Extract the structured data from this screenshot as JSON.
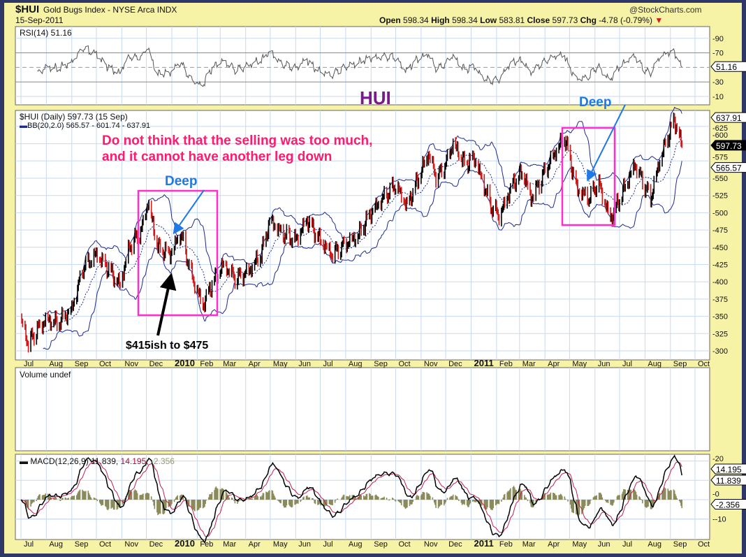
{
  "header": {
    "symbol": "$HUI",
    "name": "Gold Bugs Index - NYSE Arca INDX",
    "source": "@StockCharts.com",
    "date": "15-Sep-2011",
    "open_label": "Open",
    "open": "598.34",
    "high_label": "High",
    "high": "598.34",
    "low_label": "Low",
    "low": "583.81",
    "close_label": "Close",
    "close": "597.73",
    "chg_label": "Chg",
    "chg": "-4.78 (-0.79%)",
    "chg_direction": "down"
  },
  "colors": {
    "up": "#000000",
    "down": "#d11a1a",
    "bands": "#1d2a8a",
    "rsi": "#555555",
    "macd": "#000000",
    "signal": "#c02050",
    "histogram": "#8a8a5a",
    "annotation_text": "#ff1a6e",
    "deep_label": "#1e78e6",
    "title": "#7a1a8a",
    "box": "#ff2fc8",
    "grid": "#c8daf0",
    "panel": "#f6f2a6"
  },
  "chart_data": [
    {
      "type": "line",
      "panel": "RSI",
      "legend": "RSI(14) 51.16",
      "last_value": "51.16",
      "yticks": [
        "90",
        "70",
        "30",
        "10"
      ],
      "ylim": [
        0,
        100
      ],
      "reference_lines": [
        70,
        30
      ],
      "grid": true
    },
    {
      "type": "ohlc",
      "panel": "price",
      "legend": "$HUI (Daily) 597.73 (15 Sep)",
      "overlay_legend": "BB(20,2.0) 565.57 - 601.74 - 637.91",
      "ylim": [
        295,
        645
      ],
      "yticks": [
        "300",
        "325",
        "350",
        "375",
        "400",
        "425",
        "450",
        "475",
        "500",
        "525",
        "550",
        "575",
        "600",
        "625"
      ],
      "value_tags": [
        "637.91",
        "597.73",
        "565.57"
      ],
      "xticks": [
        "Jul",
        "Aug",
        "Sep",
        "Oct",
        "Nov",
        "Dec",
        "2010",
        "Feb",
        "Mar",
        "Apr",
        "May",
        "Jun",
        "Jul",
        "Aug",
        "Sep",
        "Oct",
        "Nov",
        "Dec",
        "2011",
        "Feb",
        "Mar",
        "Apr",
        "May",
        "Jun",
        "Jul",
        "Aug",
        "Sep",
        "Oct"
      ],
      "xlim": [
        "2009-07-01",
        "2011-10-01"
      ],
      "approx_close_path": [
        [
          "2009-07-01",
          345
        ],
        [
          "2009-07-10",
          310
        ],
        [
          "2009-07-20",
          330
        ],
        [
          "2009-08-01",
          345
        ],
        [
          "2009-08-15",
          340
        ],
        [
          "2009-09-01",
          360
        ],
        [
          "2009-09-15",
          420
        ],
        [
          "2009-10-01",
          440
        ],
        [
          "2009-10-15",
          420
        ],
        [
          "2009-10-30",
          395
        ],
        [
          "2009-11-10",
          450
        ],
        [
          "2009-11-25",
          475
        ],
        [
          "2009-12-03",
          515
        ],
        [
          "2009-12-15",
          450
        ],
        [
          "2009-12-30",
          440
        ],
        [
          "2010-01-12",
          470
        ],
        [
          "2010-01-25",
          410
        ],
        [
          "2010-02-08",
          365
        ],
        [
          "2010-02-20",
          400
        ],
        [
          "2010-03-05",
          425
        ],
        [
          "2010-03-20",
          405
        ],
        [
          "2010-04-05",
          415
        ],
        [
          "2010-04-20",
          440
        ],
        [
          "2010-05-01",
          490
        ],
        [
          "2010-05-15",
          470
        ],
        [
          "2010-06-01",
          460
        ],
        [
          "2010-06-15",
          490
        ],
        [
          "2010-07-01",
          460
        ],
        [
          "2010-07-15",
          440
        ],
        [
          "2010-08-01",
          455
        ],
        [
          "2010-08-15",
          465
        ],
        [
          "2010-09-01",
          500
        ],
        [
          "2010-09-15",
          520
        ],
        [
          "2010-10-01",
          540
        ],
        [
          "2010-10-15",
          510
        ],
        [
          "2010-11-01",
          560
        ],
        [
          "2010-11-10",
          585
        ],
        [
          "2010-11-20",
          550
        ],
        [
          "2010-12-01",
          570
        ],
        [
          "2010-12-10",
          600
        ],
        [
          "2010-12-25",
          570
        ],
        [
          "2011-01-05",
          580
        ],
        [
          "2011-01-25",
          510
        ],
        [
          "2011-02-05",
          495
        ],
        [
          "2011-02-20",
          540
        ],
        [
          "2011-03-05",
          560
        ],
        [
          "2011-03-15",
          520
        ],
        [
          "2011-04-01",
          560
        ],
        [
          "2011-04-10",
          580
        ],
        [
          "2011-04-25",
          610
        ],
        [
          "2011-05-10",
          535
        ],
        [
          "2011-05-25",
          520
        ],
        [
          "2011-06-05",
          545
        ],
        [
          "2011-06-20",
          490
        ],
        [
          "2011-07-05",
          530
        ],
        [
          "2011-07-20",
          570
        ],
        [
          "2011-08-08",
          520
        ],
        [
          "2011-08-20",
          580
        ],
        [
          "2011-09-06",
          635
        ],
        [
          "2011-09-15",
          597.73
        ]
      ],
      "grid": true
    },
    {
      "type": "bar",
      "panel": "volume",
      "legend": "Volume undef"
    },
    {
      "type": "line",
      "panel": "MACD",
      "legend_name": "MACD(12,26,9)",
      "legend_macd": "11.839",
      "legend_signal": "14.195",
      "legend_hist": "-2.356",
      "yticks": [
        "20",
        "0",
        "-10"
      ],
      "ylim": [
        -16,
        23
      ],
      "value_tags": [
        "14.195",
        "11.839",
        "-2.356"
      ],
      "grid": true
    }
  ],
  "annotations": {
    "title": "HUI",
    "comment_line1": "Do not think that the selling was too much,",
    "comment_line2": "and it cannot have another leg down",
    "deep_1": "Deep",
    "deep_2": "Deep",
    "range_note": "$415ish to $475"
  }
}
